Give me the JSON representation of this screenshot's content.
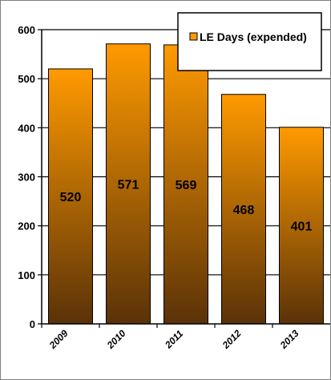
{
  "chart_data": {
    "type": "bar",
    "categories": [
      "2009",
      "2010",
      "2011",
      "2012",
      "2013"
    ],
    "series": [
      {
        "name": "LE Days (expended)",
        "values": [
          520,
          571,
          569,
          468,
          401
        ]
      }
    ],
    "data_labels": [
      "520",
      "571",
      "569",
      "468",
      "401"
    ],
    "ylim": [
      0,
      600
    ],
    "yticks": [
      0,
      100,
      200,
      300,
      400,
      500,
      600
    ],
    "grid": "horizontal",
    "legend_position": "top-right",
    "colors": {
      "bar_top": "#ff9a00",
      "bar_bottom": "#5a3208",
      "bar_outline": "#000000",
      "grid": "#000000"
    }
  }
}
